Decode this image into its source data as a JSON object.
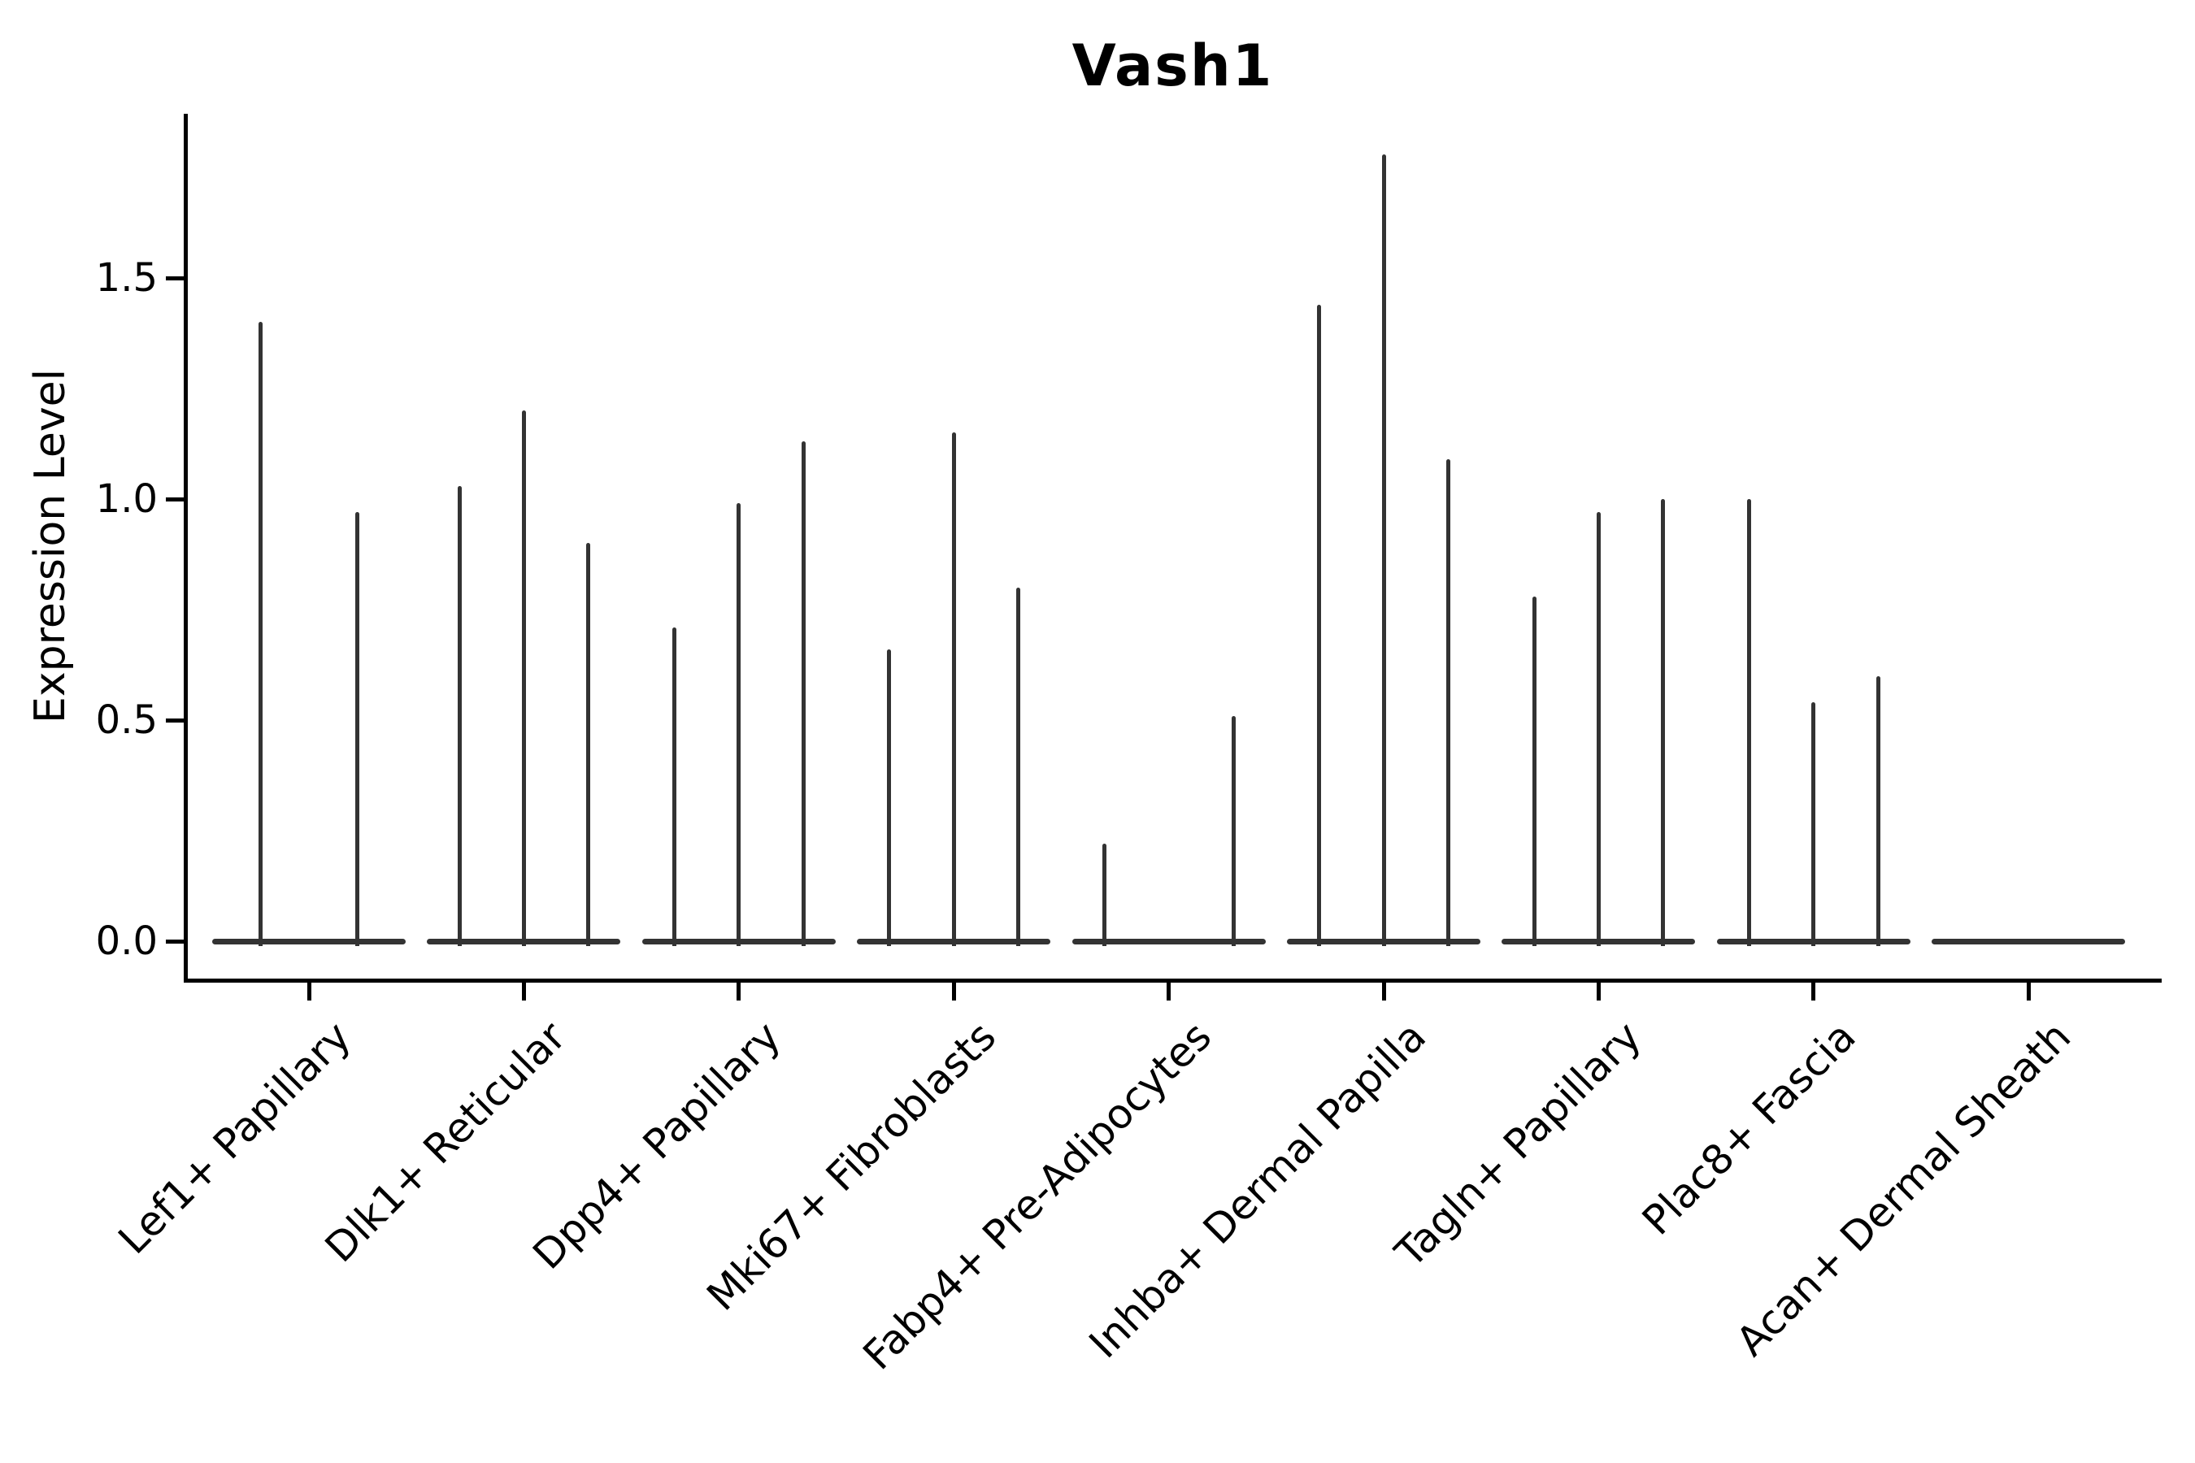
{
  "chart_data": {
    "type": "violin",
    "title": "Vash1",
    "ylabel": "Expression Level",
    "xlabel": "",
    "yticks": [
      0.0,
      0.5,
      1.0,
      1.5
    ],
    "ylim": [
      -0.09,
      1.87
    ],
    "grid": false,
    "legend": "none",
    "x_labels_rotation": 45,
    "categories": [
      "Lef1+ Papillary",
      "Dlk1+ Reticular",
      "Dpp4+ Papillary",
      "Mki67+ Fibroblasts",
      "Fabp4+ Pre-Adipocytes",
      "Inhba+ Dermal Papilla",
      "Tagln+ Papillary",
      "Plac8+ Fascia",
      "Acan+ Dermal Sheath"
    ],
    "groups": [
      {
        "label": "Lef1+ Papillary",
        "violin_peak_values": [
          1.4,
          0.97
        ]
      },
      {
        "label": "Dlk1+ Reticular",
        "violin_peak_values": [
          1.03,
          1.2,
          0.9
        ]
      },
      {
        "label": "Dpp4+ Papillary",
        "violin_peak_values": [
          0.71,
          0.99,
          1.13
        ]
      },
      {
        "label": "Mki67+ Fibroblasts",
        "violin_peak_values": [
          0.66,
          1.15,
          0.8
        ]
      },
      {
        "label": "Fabp4+ Pre-Adipocytes",
        "violin_peak_values": [
          0.22,
          0.0,
          0.51
        ]
      },
      {
        "label": "Inhba+ Dermal Papilla",
        "violin_peak_values": [
          1.44,
          1.78,
          1.09
        ]
      },
      {
        "label": "Tagln+ Papillary",
        "violin_peak_values": [
          0.78,
          0.97,
          1.0
        ]
      },
      {
        "label": "Plac8+ Fascia",
        "violin_peak_values": [
          1.0,
          0.54,
          0.6
        ]
      },
      {
        "label": "Acan+ Dermal Sheath",
        "violin_peak_values": [
          0.0,
          0.0,
          0.0
        ]
      }
    ],
    "description": "Violin plot of Vash1 expression; each cell-type group shows narrow spike-like violins with a wide flat base at expression 0."
  },
  "colors": {
    "violin": "#333333",
    "axis": "#000000",
    "text": "#000000",
    "background": "#ffffff"
  }
}
